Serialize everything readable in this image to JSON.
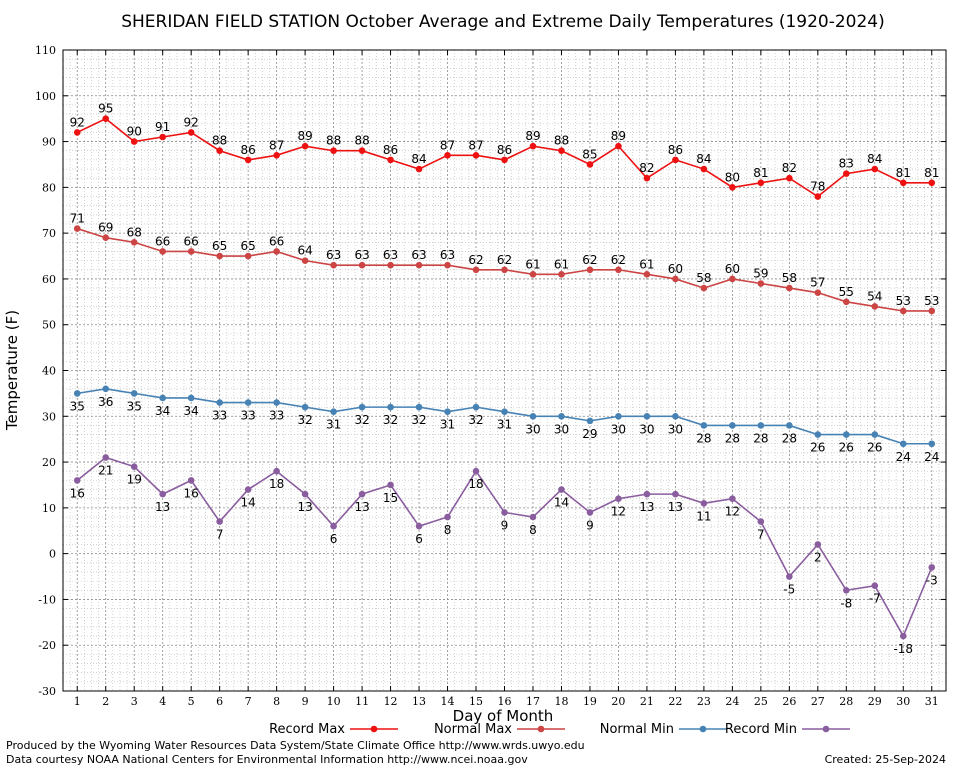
{
  "chart_data": {
    "type": "line",
    "title": "SHERIDAN FIELD STATION October Average and Extreme Daily Temperatures (1920-2024)",
    "xlabel": "Day of Month",
    "ylabel": "Temperature (F)",
    "ylim": [
      -30,
      110
    ],
    "yticks": [
      -30,
      -20,
      -10,
      0,
      10,
      20,
      30,
      40,
      50,
      60,
      70,
      80,
      90,
      100,
      110
    ],
    "x": [
      1,
      2,
      3,
      4,
      5,
      6,
      7,
      8,
      9,
      10,
      11,
      12,
      13,
      14,
      15,
      16,
      17,
      18,
      19,
      20,
      21,
      22,
      23,
      24,
      25,
      26,
      27,
      28,
      29,
      30,
      31
    ],
    "grid": true,
    "legend_position": "bottom",
    "series": [
      {
        "name": "Record Max",
        "color": "#ee1111",
        "label_position": "above",
        "values": [
          92,
          95,
          90,
          91,
          92,
          88,
          86,
          87,
          89,
          88,
          88,
          86,
          84,
          87,
          87,
          86,
          89,
          88,
          85,
          89,
          82,
          86,
          84,
          80,
          81,
          82,
          78,
          83,
          84,
          81,
          81
        ]
      },
      {
        "name": "Normal Max",
        "color": "#cc4444",
        "label_position": "above",
        "values": [
          71,
          69,
          68,
          66,
          66,
          65,
          65,
          66,
          64,
          63,
          63,
          63,
          63,
          63,
          62,
          62,
          61,
          61,
          62,
          62,
          61,
          60,
          58,
          60,
          59,
          58,
          57,
          55,
          54,
          53,
          53
        ]
      },
      {
        "name": "Normal Min",
        "color": "#4682b4",
        "label_position": "below",
        "values": [
          35,
          36,
          35,
          34,
          34,
          33,
          33,
          33,
          32,
          31,
          32,
          32,
          32,
          31,
          32,
          31,
          30,
          30,
          29,
          30,
          30,
          30,
          28,
          28,
          28,
          28,
          26,
          26,
          26,
          24,
          24
        ]
      },
      {
        "name": "Record Min",
        "color": "#8a5d9e",
        "label_position": "below",
        "values": [
          16,
          21,
          19,
          13,
          16,
          7,
          14,
          18,
          13,
          6,
          13,
          15,
          6,
          8,
          18,
          9,
          8,
          14,
          9,
          12,
          13,
          13,
          11,
          12,
          7,
          -5,
          2,
          -8,
          -7,
          -18,
          -3
        ]
      }
    ]
  },
  "footer": {
    "line1": "Produced by the Wyoming Water Resources Data System/State Climate Office http://www.wrds.uwyo.edu",
    "line2": "Data courtesy NOAA National Centers for Environmental Information http://www.ncei.noaa.gov",
    "created": "Created:  25-Sep-2024"
  }
}
